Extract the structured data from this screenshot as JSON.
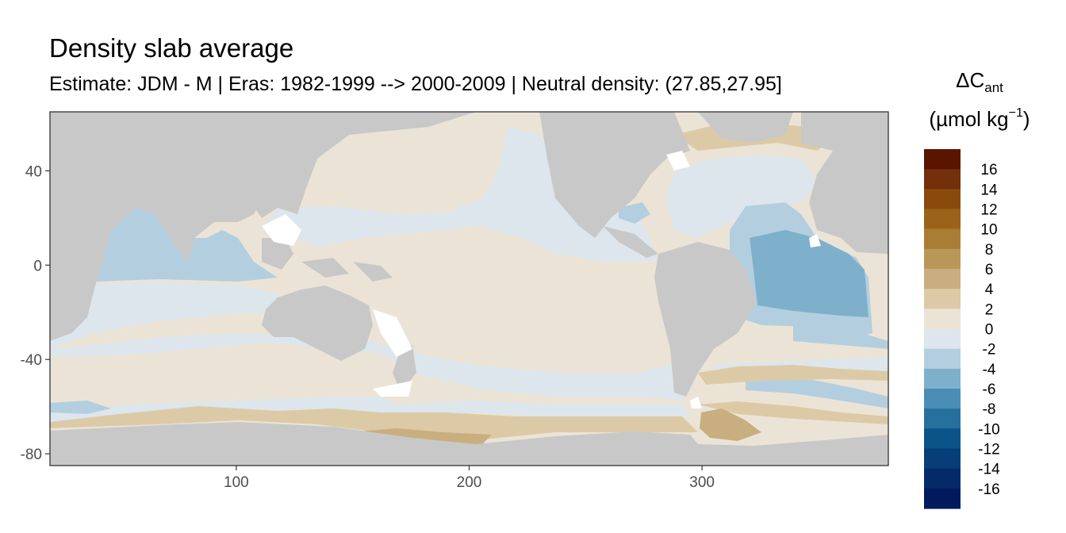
{
  "header": {
    "title": "Density slab average",
    "subtitle": "Estimate: JDM - M | Eras: 1982-1999 --> 2000-2009 | Neutral density: (27.85,27.95]"
  },
  "legend": {
    "symbol_main": "ΔC",
    "symbol_sub": "ant",
    "unit_main": "(µmol kg",
    "unit_exp": "−1",
    "unit_close": ")",
    "bins": [
      {
        "label": "16",
        "color": "#5a1500"
      },
      {
        "label": "14",
        "color": "#73300a"
      },
      {
        "label": "12",
        "color": "#8a4a0c"
      },
      {
        "label": "10",
        "color": "#9b6319"
      },
      {
        "label": "8",
        "color": "#a97e34"
      },
      {
        "label": "6",
        "color": "#b99757"
      },
      {
        "label": "4",
        "color": "#c9ae7f"
      },
      {
        "label": "2",
        "color": "#dccaa7"
      },
      {
        "label": "0",
        "color": "#ebe4d6"
      },
      {
        "label": "-2",
        "color": "#dde6ec"
      },
      {
        "label": "-4",
        "color": "#b3cfdf"
      },
      {
        "label": "-6",
        "color": "#7fb0cb"
      },
      {
        "label": "-8",
        "color": "#4a8eb5"
      },
      {
        "label": "-10",
        "color": "#26709e"
      },
      {
        "label": "-12",
        "color": "#0a5488"
      },
      {
        "label": "-14",
        "color": "#073e78"
      },
      {
        "label": "-16",
        "color": "#042a68"
      },
      {
        "label": "",
        "color": "#011a5e"
      }
    ]
  },
  "axes": {
    "x_ticks": [
      100,
      200,
      300
    ],
    "y_ticks": [
      40,
      0,
      -40,
      -80
    ],
    "x_range": [
      20,
      380
    ],
    "y_range": [
      -85,
      65
    ]
  },
  "map_colors": {
    "land": "#c8c8c8",
    "coast": "#ffffff",
    "zero": "#ebe4d6",
    "neg2": "#dde6ec",
    "neg4": "#b3cfdf",
    "neg6": "#7fb0cb",
    "pos2": "#dccaa7",
    "pos4": "#c9ae7f"
  }
}
